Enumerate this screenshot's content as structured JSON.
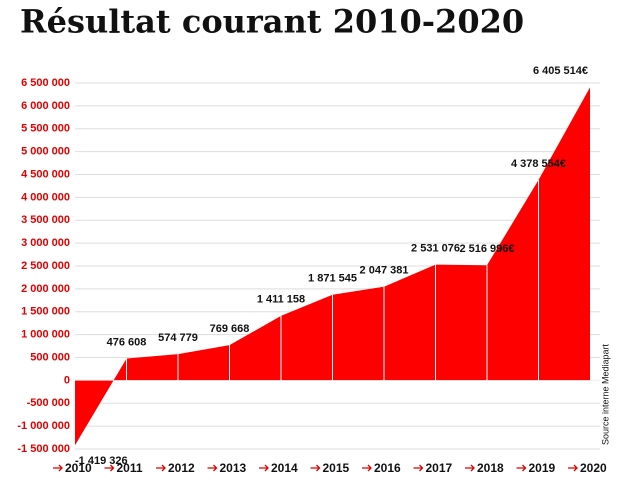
{
  "chart_data": {
    "type": "area",
    "title": "Résultat courant 2010-2020",
    "note": "Source interne Mediapart",
    "categories": [
      "2010",
      "2011",
      "2012",
      "2013",
      "2014",
      "2015",
      "2016",
      "2017",
      "2018",
      "2019",
      "2020"
    ],
    "values": [
      -1419326,
      476608,
      574779,
      769668,
      1411158,
      1871545,
      2047381,
      2531076,
      2516996,
      4378554,
      6405514
    ],
    "value_labels": [
      "-1 419 326",
      "476 608",
      "574 779",
      "769 668",
      "1 411 158",
      "1 871 545",
      "2 047 381",
      "2 531 076",
      "2 516 996€",
      "4 378 554€",
      "6 405 514€"
    ],
    "color": "#ff0000",
    "ylim": [
      -1500000,
      6500000
    ],
    "yticks": [
      {
        "value": -1500000,
        "label": "-1 500 000"
      },
      {
        "value": -1000000,
        "label": "-1 000 000"
      },
      {
        "value": -500000,
        "label": "-500 000"
      },
      0,
      {
        "value": 500000,
        "label": "500 000"
      },
      {
        "value": 1000000,
        "label": "1 000 000"
      },
      {
        "value": 1500000,
        "label": "1 500 000"
      },
      {
        "value": 2000000,
        "label": "2 000 000"
      },
      {
        "value": 2500000,
        "label": "2 500 000"
      },
      {
        "value": 3000000,
        "label": "3 000 000"
      },
      {
        "value": 3500000,
        "label": "3 500 000"
      },
      {
        "value": 4000000,
        "label": "4 000 000"
      },
      {
        "value": 4500000,
        "label": "4 500 000"
      },
      {
        "value": 5000000,
        "label": "5 000 000"
      },
      {
        "value": 5500000,
        "label": "5 500 000"
      },
      {
        "value": 6000000,
        "label": "6 000 000"
      },
      {
        "value": 6500000,
        "label": "6 500 000"
      }
    ],
    "grid": true
  }
}
